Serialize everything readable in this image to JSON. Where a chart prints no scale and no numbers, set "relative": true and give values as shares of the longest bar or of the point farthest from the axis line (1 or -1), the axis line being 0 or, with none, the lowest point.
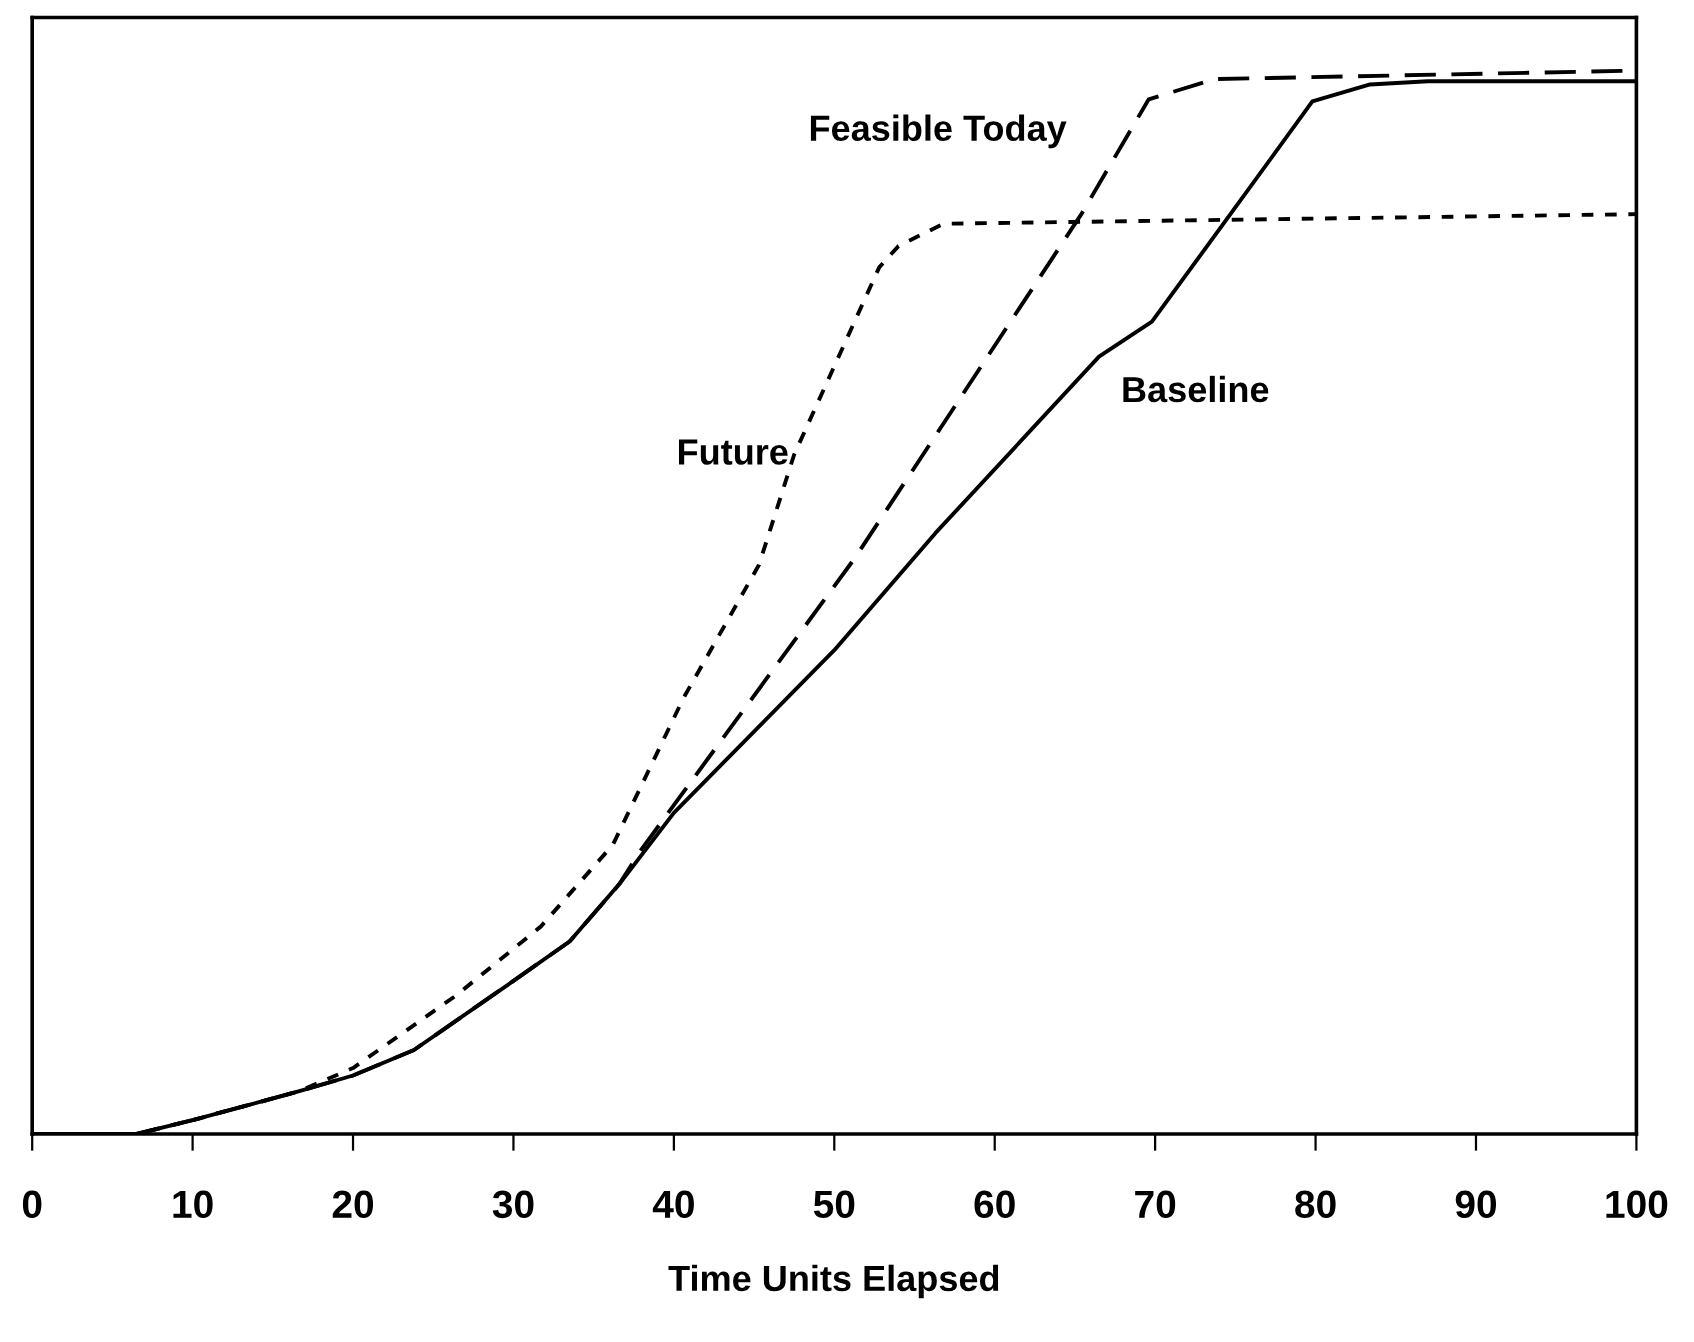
{
  "chart_data": {
    "type": "line",
    "relative": true,
    "xlabel": "Time Units Elapsed",
    "xlim": [
      0,
      100
    ],
    "xticks": [
      0,
      10,
      20,
      30,
      40,
      50,
      60,
      70,
      80,
      90,
      100
    ],
    "grid": false,
    "legend": false,
    "marker": "none",
    "series": [
      {
        "name": "Baseline",
        "color": "#000000",
        "line_style": "solid",
        "x": [
          0,
          6.5,
          10,
          16.6,
          20,
          23.8,
          30,
          33.5,
          36.6,
          40,
          50,
          56.3,
          66.5,
          69.8,
          74.5,
          79.8,
          83.4,
          87,
          100
        ],
        "values": [
          0,
          0,
          0.013,
          0.04,
          0.055,
          0.079,
          0.144,
          0.181,
          0.235,
          0.302,
          0.455,
          0.565,
          0.731,
          0.764,
          0.861,
          0.971,
          0.987,
          0.99,
          0.99
        ]
      },
      {
        "name": "Feasible Today",
        "color": "#000000",
        "line_style": "dashed",
        "x": [
          0,
          6.5,
          10,
          16.6,
          20,
          23.8,
          30,
          33.5,
          36.6,
          37.9,
          51.3,
          65.4,
          69.6,
          73.7,
          100
        ],
        "values": [
          0,
          0,
          0.013,
          0.04,
          0.055,
          0.079,
          0.144,
          0.181,
          0.235,
          0.266,
          0.542,
          0.865,
          0.973,
          0.992,
          1.0
        ]
      },
      {
        "name": "Future",
        "color": "#000000",
        "line_style": "dotted",
        "x": [
          0,
          6.5,
          10,
          16.6,
          20,
          26.4,
          31.7,
          36.2,
          40.6,
          45.3,
          47.5,
          52.8,
          54,
          56.8,
          100
        ],
        "values": [
          0,
          0,
          0.013,
          0.04,
          0.062,
          0.13,
          0.195,
          0.272,
          0.41,
          0.535,
          0.639,
          0.815,
          0.835,
          0.856,
          0.865
        ]
      }
    ]
  }
}
